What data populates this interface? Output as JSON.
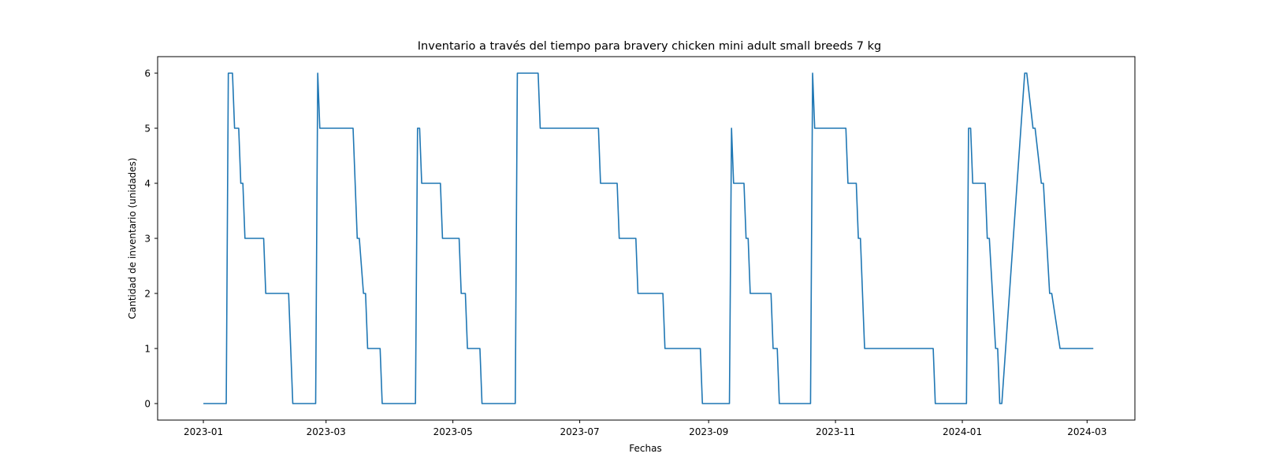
{
  "chart_data": {
    "type": "line",
    "title": "Inventario a través del tiempo para bravery chicken mini adult small breeds 7 kg",
    "xlabel": "Fechas",
    "ylabel": "Cantidad de inventario (unidades)",
    "xlim": [
      "2022-12-10",
      "2024-03-24"
    ],
    "ylim": [
      -0.3,
      6.3
    ],
    "x_ticks": [
      "2023-01-01",
      "2023-03-01",
      "2023-05-01",
      "2023-07-01",
      "2023-09-01",
      "2023-11-01",
      "2024-01-01",
      "2024-03-01"
    ],
    "x_tick_labels": [
      "2023-01",
      "2023-03",
      "2023-05",
      "2023-07",
      "2023-09",
      "2023-11",
      "2024-01",
      "2024-03"
    ],
    "y_ticks": [
      0,
      1,
      2,
      3,
      4,
      5,
      6
    ],
    "y_tick_labels": [
      "0",
      "1",
      "2",
      "3",
      "4",
      "5",
      "6"
    ],
    "grid": false,
    "line_color": "#1f77b4",
    "series": [
      {
        "x": [
          "2023-01-01",
          "2023-01-12",
          "2023-01-13",
          "2023-01-15",
          "2023-01-16",
          "2023-01-18",
          "2023-01-19",
          "2023-01-20",
          "2023-01-21",
          "2023-01-30",
          "2023-01-31",
          "2023-02-11",
          "2023-02-13",
          "2023-02-24",
          "2023-02-25",
          "2023-02-26",
          "2023-03-14",
          "2023-03-16",
          "2023-03-17",
          "2023-03-19",
          "2023-03-20",
          "2023-03-21",
          "2023-03-27",
          "2023-03-28",
          "2023-04-13",
          "2023-04-14",
          "2023-04-15",
          "2023-04-16",
          "2023-04-25",
          "2023-04-26",
          "2023-05-04",
          "2023-05-05",
          "2023-05-07",
          "2023-05-08",
          "2023-05-14",
          "2023-05-15",
          "2023-05-31",
          "2023-06-01",
          "2023-06-11",
          "2023-06-12",
          "2023-07-10",
          "2023-07-11",
          "2023-07-19",
          "2023-07-20",
          "2023-07-28",
          "2023-07-29",
          "2023-08-10",
          "2023-08-11",
          "2023-08-28",
          "2023-08-29",
          "2023-09-11",
          "2023-09-12",
          "2023-09-13",
          "2023-09-18",
          "2023-09-19",
          "2023-09-20",
          "2023-09-21",
          "2023-10-01",
          "2023-10-02",
          "2023-10-04",
          "2023-10-05",
          "2023-10-20",
          "2023-10-21",
          "2023-10-22",
          "2023-11-06",
          "2023-11-07",
          "2023-11-11",
          "2023-11-12",
          "2023-11-13",
          "2023-11-15",
          "2023-12-18",
          "2023-12-19",
          "2024-01-03",
          "2024-01-04",
          "2024-01-05",
          "2024-01-06",
          "2024-01-12",
          "2024-01-13",
          "2024-01-14",
          "2024-01-17",
          "2024-01-18",
          "2024-01-19",
          "2024-01-20",
          "2024-01-31",
          "2024-02-01",
          "2024-02-04",
          "2024-02-05",
          "2024-02-08",
          "2024-02-09",
          "2024-02-12",
          "2024-02-13",
          "2024-02-17",
          "2024-02-18",
          "2024-03-04"
        ],
        "y": [
          0,
          0,
          6,
          6,
          5,
          5,
          4,
          4,
          3,
          3,
          2,
          2,
          0,
          0,
          6,
          5,
          5,
          3,
          3,
          2,
          2,
          1,
          1,
          0,
          0,
          5,
          5,
          4,
          4,
          3,
          3,
          2,
          2,
          1,
          1,
          0,
          0,
          6,
          6,
          5,
          5,
          4,
          4,
          3,
          3,
          2,
          2,
          1,
          1,
          0,
          0,
          5,
          4,
          4,
          3,
          3,
          2,
          2,
          1,
          1,
          0,
          0,
          6,
          5,
          5,
          4,
          4,
          3,
          3,
          1,
          1,
          0,
          0,
          5,
          5,
          4,
          4,
          3,
          3,
          1,
          1,
          0,
          0,
          6,
          6,
          5,
          5,
          4,
          4,
          2,
          2,
          1,
          1,
          1
        ]
      }
    ]
  }
}
